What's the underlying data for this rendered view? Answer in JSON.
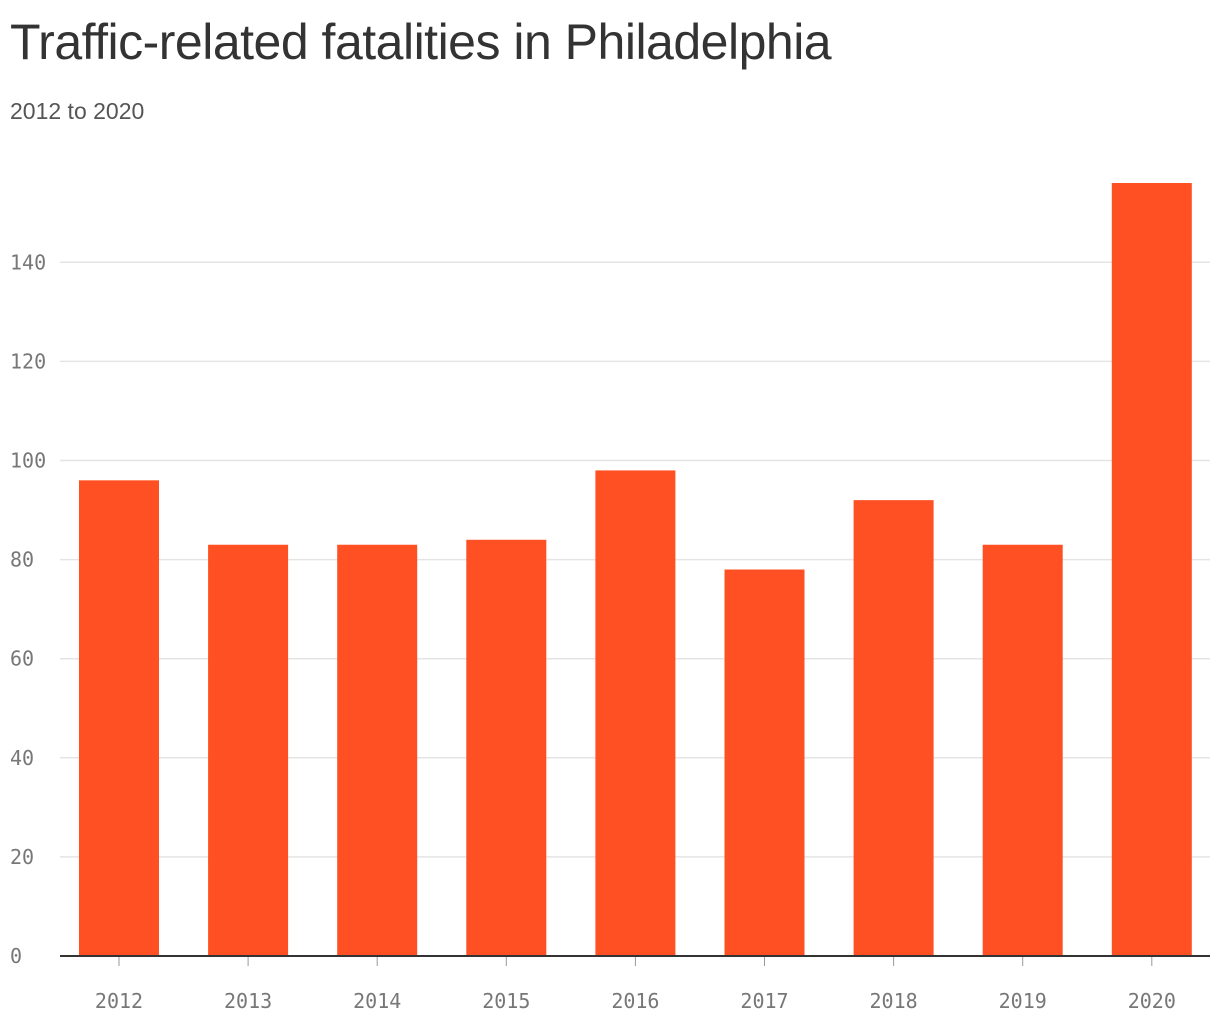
{
  "chart_data": {
    "type": "bar",
    "title": "Traffic-related fatalities in Philadelphia",
    "subtitle": "2012 to 2020",
    "xlabel": "",
    "ylabel": "",
    "categories": [
      "2012",
      "2013",
      "2014",
      "2015",
      "2016",
      "2017",
      "2018",
      "2019",
      "2020"
    ],
    "values": [
      96,
      83,
      83,
      84,
      98,
      78,
      92,
      83,
      156
    ],
    "ylim": [
      0,
      160
    ],
    "yticks": [
      0,
      20,
      40,
      60,
      80,
      100,
      120,
      140
    ],
    "grid": true,
    "legend": "none",
    "colors": {
      "bar": "#FF5023",
      "grid": "#E4E4E4",
      "axis": "#333333",
      "tick_text": "#777777"
    }
  }
}
